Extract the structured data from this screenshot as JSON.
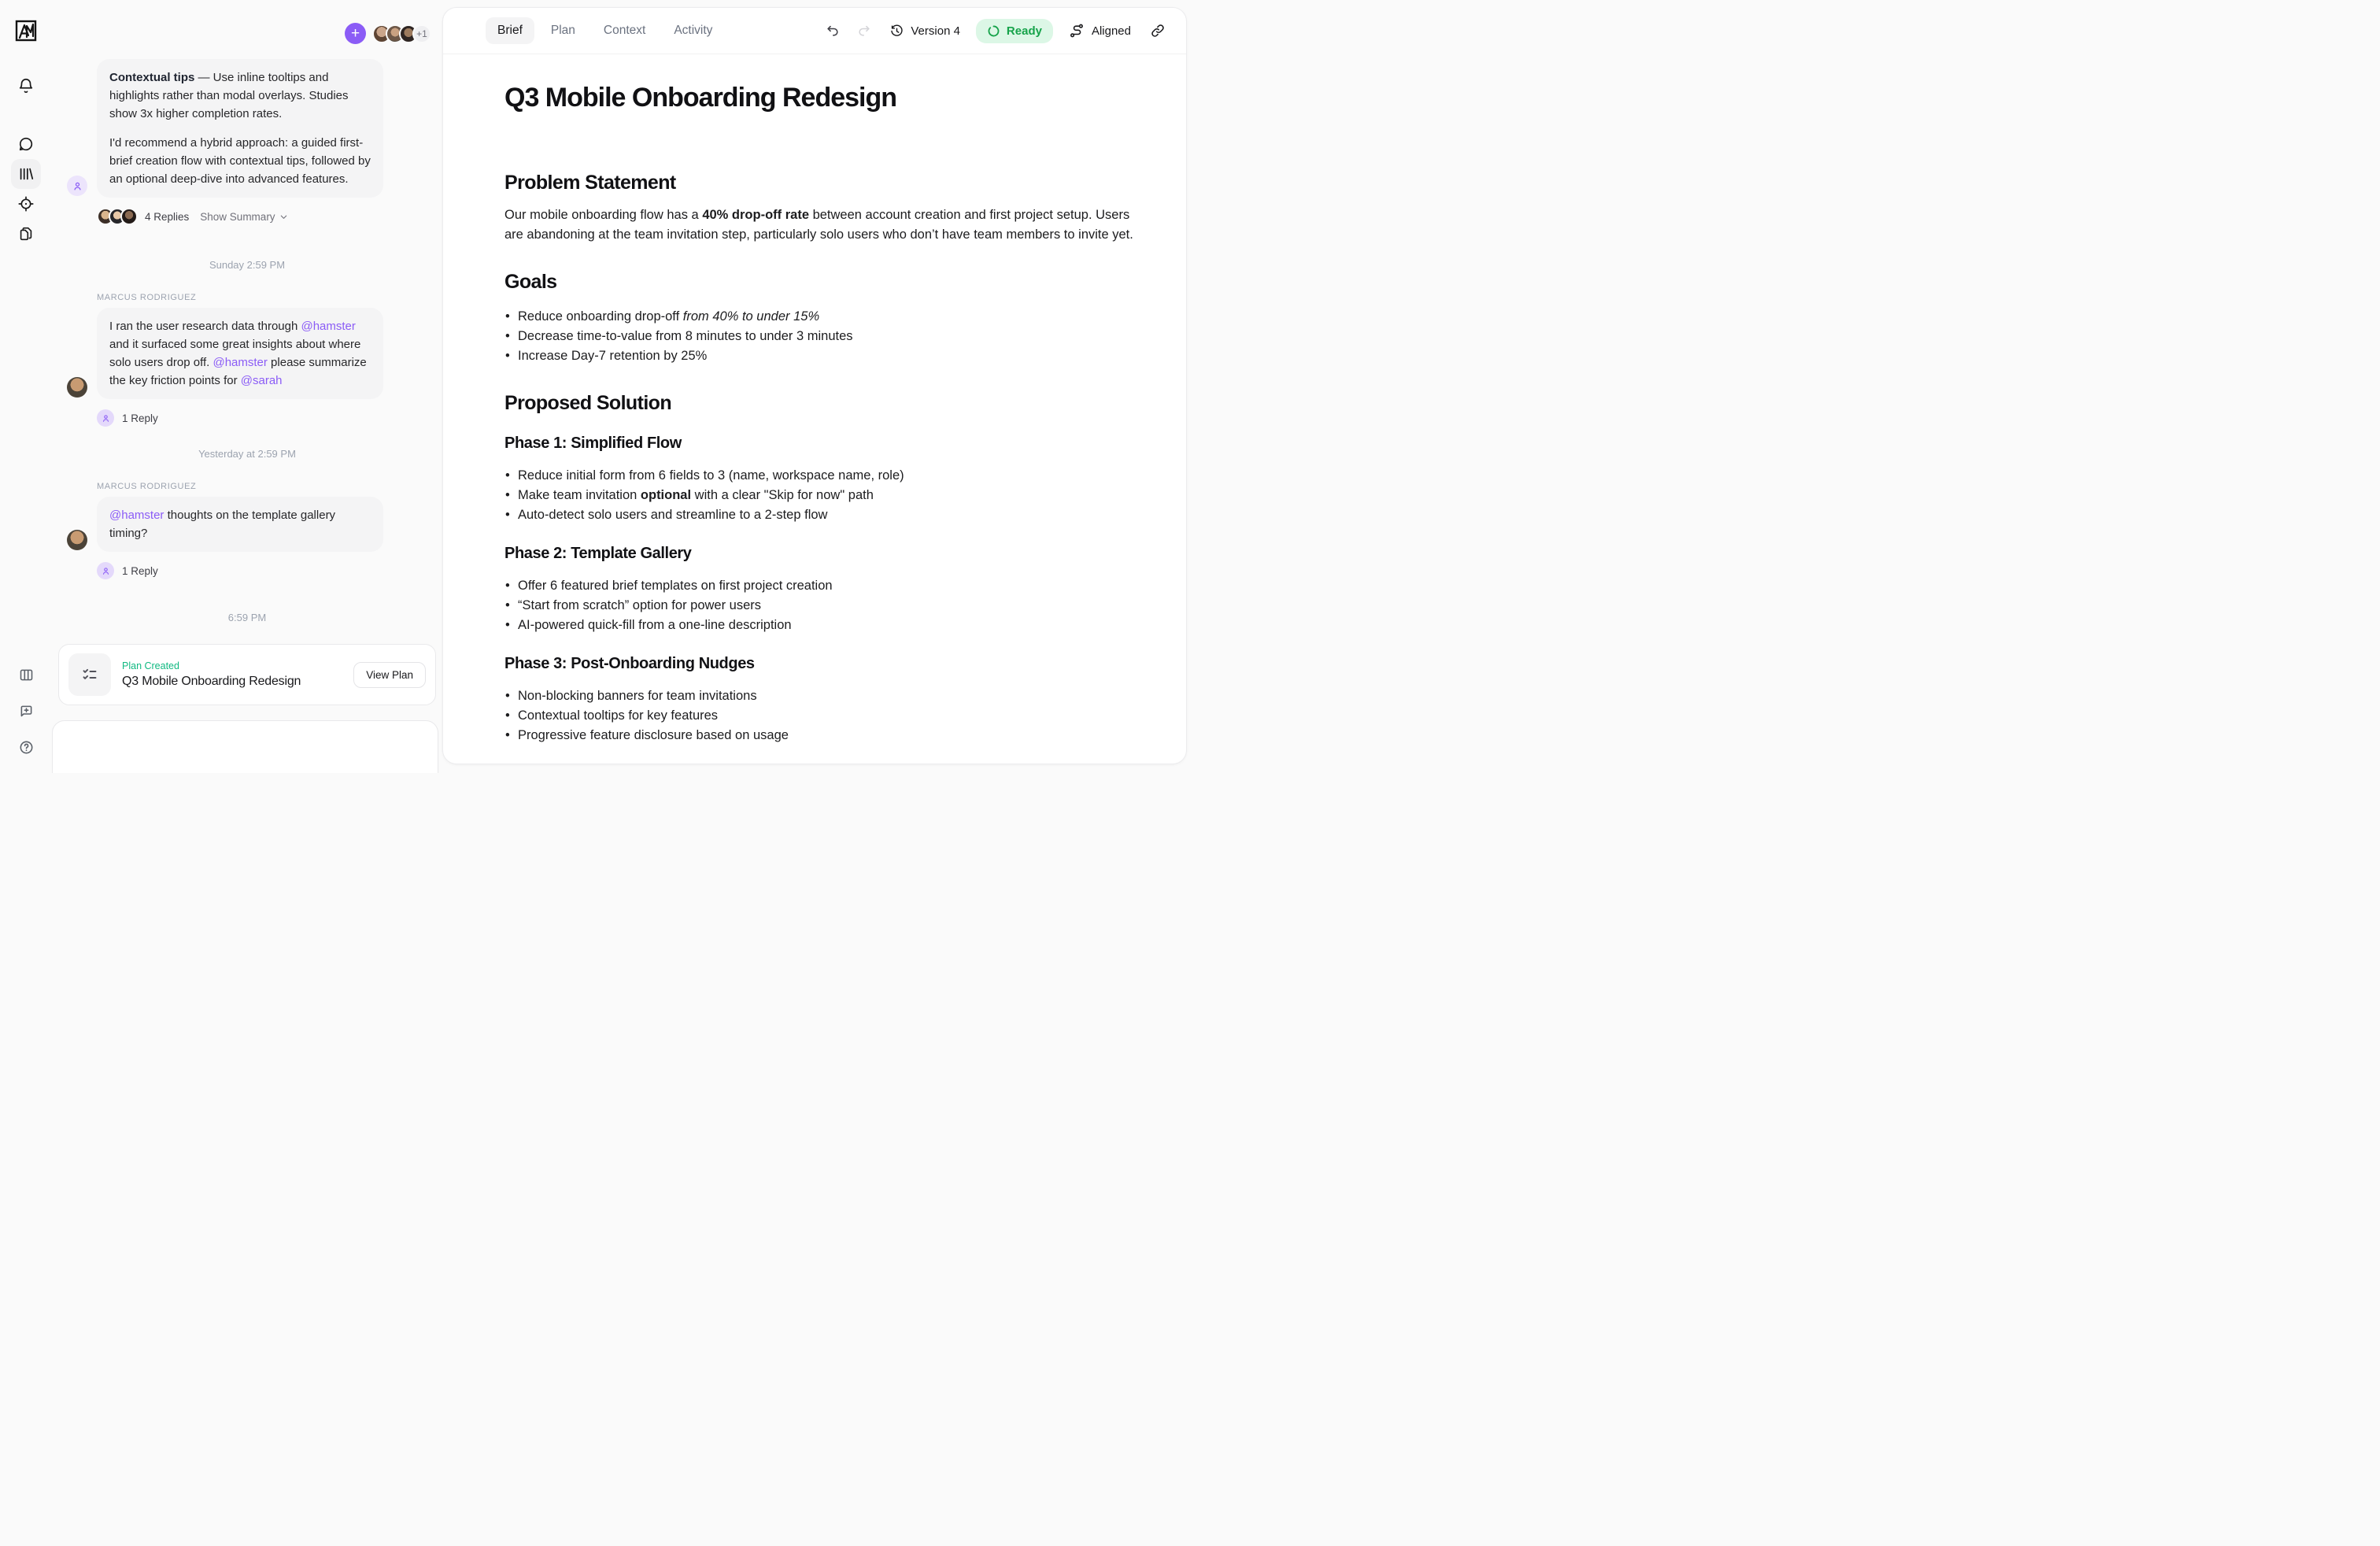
{
  "accent": {
    "purple": "#8b5cf6",
    "green": "#10b981",
    "ready_green": "#16a34a",
    "bubble_gray": "#f4f4f5"
  },
  "chat": {
    "overflow_count": "+1",
    "feed": [
      {
        "kind": "message",
        "avatar": "ai",
        "paragraphs": [
          [
            {
              "t": "Contextual tips",
              "b": true
            },
            {
              "t": " — Use inline tooltips and highlights rather than modal overlays. Studies show 3x higher completion rates."
            }
          ],
          [
            {
              "t": "I'd recommend a hybrid approach: a guided first-brief creation flow with contextual tips, followed by an optional deep-dive into advanced features."
            }
          ]
        ],
        "replies": {
          "avatars": [
            "p4",
            "p5",
            "p6"
          ],
          "count": "4 Replies",
          "summary": "Show Summary"
        }
      },
      {
        "kind": "divider",
        "text": "Sunday 2:59 PM"
      },
      {
        "kind": "message",
        "avatar": "marcus",
        "sender": "MARCUS RODRIGUEZ",
        "paragraphs": [
          [
            {
              "t": "I ran the user research data through "
            },
            {
              "t": "@hamster",
              "m": true
            },
            {
              "t": " and it surfaced some great insights about where solo users drop off. "
            },
            {
              "t": "@hamster",
              "m": true
            },
            {
              "t": " please summarize the key friction points for "
            },
            {
              "t": "@sarah",
              "m": true
            }
          ]
        ],
        "replies": {
          "ai": true,
          "count": "1 Reply"
        }
      },
      {
        "kind": "divider",
        "text": "Yesterday at 2:59 PM"
      },
      {
        "kind": "message",
        "avatar": "marcus",
        "sender": "MARCUS RODRIGUEZ",
        "paragraphs": [
          [
            {
              "t": "@hamster",
              "m": true
            },
            {
              "t": " thoughts on the template gallery timing?"
            }
          ]
        ],
        "replies": {
          "ai": true,
          "count": "1 Reply"
        }
      },
      {
        "kind": "divider",
        "text": "6:59 PM"
      }
    ],
    "plan_card": {
      "status": "Plan Created",
      "title": "Q3 Mobile Onboarding Redesign",
      "action": "View Plan"
    },
    "composer": {
      "value": ""
    }
  },
  "doc": {
    "tabs": [
      {
        "label": "Brief",
        "active": true
      },
      {
        "label": "Plan"
      },
      {
        "label": "Context"
      },
      {
        "label": "Activity"
      }
    ],
    "version_label": "Version 4",
    "status_label": "Ready",
    "aligned_label": "Aligned",
    "title": "Q3 Mobile Onboarding Redesign",
    "sections": [
      {
        "type": "h2",
        "text": "Problem Statement",
        "first": true
      },
      {
        "type": "p",
        "segments": [
          {
            "t": "Our mobile onboarding flow has a "
          },
          {
            "t": "40% drop-off rate",
            "b": true
          },
          {
            "t": " between account creation and first project setup. Users are abandoning at the team invitation step, particularly solo users who don’t have team members to invite yet."
          }
        ]
      },
      {
        "type": "h2",
        "text": "Goals"
      },
      {
        "type": "ul",
        "items": [
          [
            {
              "t": "Reduce onboarding drop-off "
            },
            {
              "t": "from 40% to under 15%",
              "i": true
            }
          ],
          [
            {
              "t": "Decrease time-to-value from 8 minutes to under 3 minutes"
            }
          ],
          [
            {
              "t": "Increase Day-7 retention by 25%"
            }
          ]
        ]
      },
      {
        "type": "h2",
        "text": "Proposed Solution"
      },
      {
        "type": "h3",
        "text": "Phase 1: Simplified Flow"
      },
      {
        "type": "ul",
        "items": [
          [
            {
              "t": "Reduce initial form from 6 fields to 3 (name, workspace name, role)"
            }
          ],
          [
            {
              "t": "Make team invitation "
            },
            {
              "t": "optional",
              "b": true
            },
            {
              "t": " with a clear \"Skip for now\" path"
            }
          ],
          [
            {
              "t": "Auto-detect solo users and streamline to a 2-step flow"
            }
          ]
        ]
      },
      {
        "type": "h3",
        "text": "Phase 2: Template Gallery"
      },
      {
        "type": "ul",
        "items": [
          [
            {
              "t": "Offer 6 featured brief templates on first project creation"
            }
          ],
          [
            {
              "t": "“Start from scratch” option for power users"
            }
          ],
          [
            {
              "t": "AI-powered quick-fill from a one-line description"
            }
          ]
        ]
      },
      {
        "type": "h3",
        "text": "Phase 3: Post-Onboarding Nudges"
      },
      {
        "type": "ul",
        "items": [
          [
            {
              "t": "Non-blocking banners for team invitations"
            }
          ],
          [
            {
              "t": "Contextual tooltips for key features"
            }
          ],
          [
            {
              "t": "Progressive feature disclosure based on usage"
            }
          ]
        ]
      }
    ]
  }
}
